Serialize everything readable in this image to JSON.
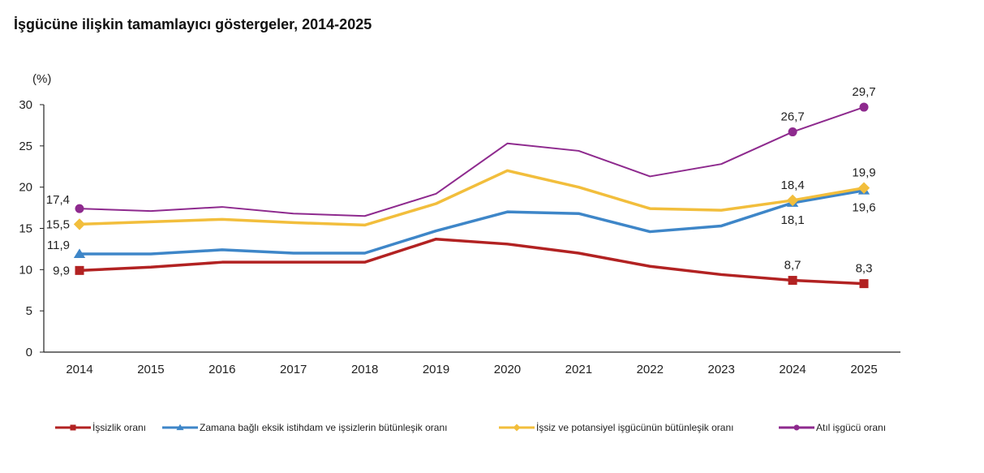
{
  "chart_data": {
    "type": "line",
    "title": "İşgücüne ilişkin tamamlayıcı göstergeler, 2014-2025",
    "ylabel": "(%)",
    "xlabel": "",
    "ylim": [
      0,
      30
    ],
    "yticks": [
      0,
      5,
      10,
      15,
      20,
      25,
      30
    ],
    "grid": false,
    "legend_position": "bottom",
    "categories": [
      "2014",
      "2015",
      "2016",
      "2017",
      "2018",
      "2019",
      "2020",
      "2021",
      "2022",
      "2023",
      "2024",
      "2025"
    ],
    "series": [
      {
        "name": "İşsizlik oranı",
        "color": "#B22222",
        "marker": "square",
        "values": [
          9.9,
          10.3,
          10.9,
          10.9,
          10.9,
          13.7,
          13.1,
          12.0,
          10.4,
          9.4,
          8.7,
          8.3
        ],
        "labels": [
          {
            "index": 0,
            "text": "9,9",
            "pos": "left"
          },
          {
            "index": 10,
            "text": "8,7",
            "pos": "above"
          },
          {
            "index": 11,
            "text": "8,3",
            "pos": "above"
          }
        ]
      },
      {
        "name": "Zamana bağlı eksik istihdam ve işsizlerin bütünleşik oranı",
        "color": "#3E86C8",
        "marker": "triangle",
        "values": [
          11.9,
          11.9,
          12.4,
          12.0,
          12.0,
          14.7,
          17.0,
          16.8,
          14.6,
          15.3,
          18.1,
          19.6
        ],
        "labels": [
          {
            "index": 0,
            "text": "11,9",
            "pos": "left-above"
          },
          {
            "index": 10,
            "text": "18,1",
            "pos": "below"
          },
          {
            "index": 11,
            "text": "19,6",
            "pos": "below"
          }
        ]
      },
      {
        "name": "İşsiz ve potansiyel işgücünün bütünleşik oranı",
        "color": "#F2BE3C",
        "marker": "diamond",
        "values": [
          15.5,
          15.8,
          16.1,
          15.7,
          15.4,
          18.0,
          22.0,
          20.0,
          17.4,
          17.2,
          18.4,
          19.9
        ],
        "labels": [
          {
            "index": 0,
            "text": "15,5",
            "pos": "left"
          },
          {
            "index": 10,
            "text": "18,4",
            "pos": "above"
          },
          {
            "index": 11,
            "text": "19,9",
            "pos": "above"
          }
        ]
      },
      {
        "name": "Atıl işgücü oranı",
        "color": "#8E2A8E",
        "marker": "circle",
        "values": [
          17.4,
          17.1,
          17.6,
          16.8,
          16.5,
          19.2,
          25.3,
          24.4,
          21.3,
          22.8,
          26.7,
          29.7
        ],
        "labels": [
          {
            "index": 0,
            "text": "17,4",
            "pos": "left-above"
          },
          {
            "index": 10,
            "text": "26,7",
            "pos": "above"
          },
          {
            "index": 11,
            "text": "29,7",
            "pos": "above"
          }
        ]
      }
    ]
  }
}
